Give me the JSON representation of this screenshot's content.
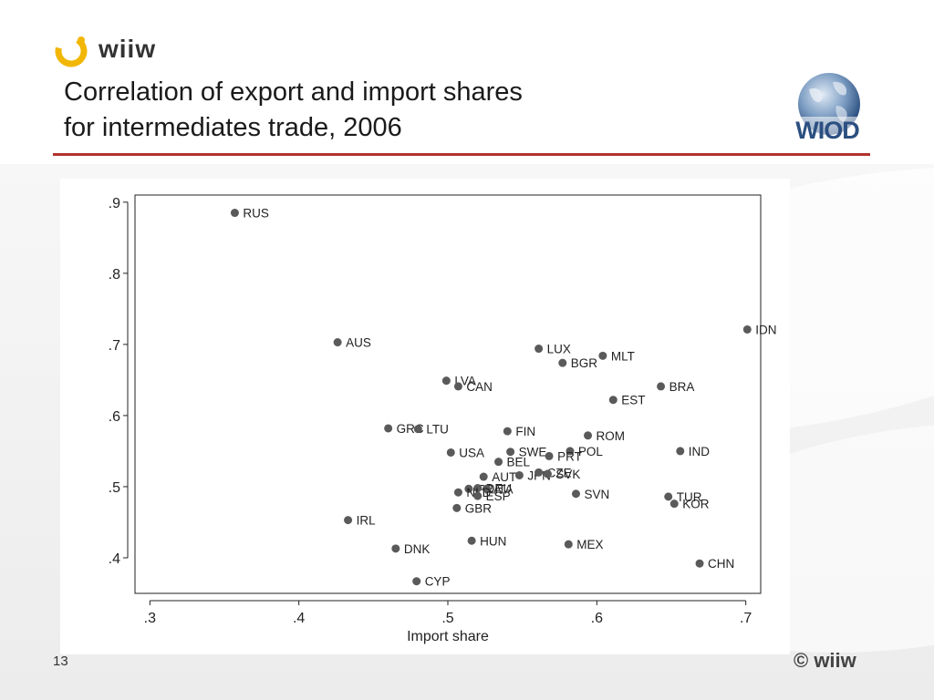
{
  "header": {
    "logo_text": "wiiw",
    "title_line1": "Correlation of export and import shares",
    "title_line2": "for intermediates trade, 2006",
    "wiod_logo_text": "WIOD"
  },
  "footer": {
    "page_number": "13",
    "copyright": "© wiiw"
  },
  "colors": {
    "accent_rule": "#b3332d",
    "marker": "#5a5a5a",
    "logo_yellow": "#f2b705"
  },
  "chart_data": {
    "type": "scatter",
    "xlabel": "Import share",
    "ylabel": "",
    "xlim": [
      0.29,
      0.71
    ],
    "ylim": [
      0.35,
      0.91
    ],
    "xticks": [
      ".3",
      ".4",
      ".5",
      ".6",
      ".7"
    ],
    "xtick_values": [
      0.3,
      0.4,
      0.5,
      0.6,
      0.7
    ],
    "yticks": [
      ".4",
      ".5",
      ".6",
      ".7",
      ".8",
      ".9"
    ],
    "ytick_values": [
      0.4,
      0.5,
      0.6,
      0.7,
      0.8,
      0.9
    ],
    "grid": false,
    "points": [
      {
        "label": "RUS",
        "x": 0.357,
        "y": 0.885
      },
      {
        "label": "IDN",
        "x": 0.701,
        "y": 0.721
      },
      {
        "label": "AUS",
        "x": 0.426,
        "y": 0.703
      },
      {
        "label": "LUX",
        "x": 0.561,
        "y": 0.694
      },
      {
        "label": "MLT",
        "x": 0.604,
        "y": 0.684
      },
      {
        "label": "BGR",
        "x": 0.577,
        "y": 0.674
      },
      {
        "label": "LVA",
        "x": 0.499,
        "y": 0.649
      },
      {
        "label": "CAN",
        "x": 0.507,
        "y": 0.641
      },
      {
        "label": "BRA",
        "x": 0.643,
        "y": 0.641
      },
      {
        "label": "EST",
        "x": 0.611,
        "y": 0.622
      },
      {
        "label": "GRC",
        "x": 0.46,
        "y": 0.582
      },
      {
        "label": "LTU",
        "x": 0.48,
        "y": 0.581
      },
      {
        "label": "FIN",
        "x": 0.54,
        "y": 0.578
      },
      {
        "label": "ROM",
        "x": 0.594,
        "y": 0.572
      },
      {
        "label": "USA",
        "x": 0.502,
        "y": 0.548
      },
      {
        "label": "SWE",
        "x": 0.542,
        "y": 0.549
      },
      {
        "label": "POL",
        "x": 0.582,
        "y": 0.55
      },
      {
        "label": "IND",
        "x": 0.656,
        "y": 0.55
      },
      {
        "label": "PRT",
        "x": 0.568,
        "y": 0.543
      },
      {
        "label": "BEL",
        "x": 0.534,
        "y": 0.535
      },
      {
        "label": "AUT",
        "x": 0.524,
        "y": 0.514
      },
      {
        "label": "JPN",
        "x": 0.548,
        "y": 0.516
      },
      {
        "label": "CZE",
        "x": 0.561,
        "y": 0.52
      },
      {
        "label": "SVK",
        "x": 0.567,
        "y": 0.518
      },
      {
        "label": "FRA",
        "x": 0.514,
        "y": 0.497
      },
      {
        "label": "DEU",
        "x": 0.52,
        "y": 0.498
      },
      {
        "label": "ITA",
        "x": 0.526,
        "y": 0.497
      },
      {
        "label": "NLD",
        "x": 0.507,
        "y": 0.492
      },
      {
        "label": "ESP",
        "x": 0.52,
        "y": 0.487
      },
      {
        "label": "SVN",
        "x": 0.586,
        "y": 0.49
      },
      {
        "label": "TUR",
        "x": 0.648,
        "y": 0.486
      },
      {
        "label": "KOR",
        "x": 0.652,
        "y": 0.476
      },
      {
        "label": "GBR",
        "x": 0.506,
        "y": 0.47
      },
      {
        "label": "IRL",
        "x": 0.433,
        "y": 0.453
      },
      {
        "label": "HUN",
        "x": 0.516,
        "y": 0.424
      },
      {
        "label": "MEX",
        "x": 0.581,
        "y": 0.419
      },
      {
        "label": "DNK",
        "x": 0.465,
        "y": 0.413
      },
      {
        "label": "CHN",
        "x": 0.669,
        "y": 0.392
      },
      {
        "label": "CYP",
        "x": 0.479,
        "y": 0.367
      }
    ]
  }
}
